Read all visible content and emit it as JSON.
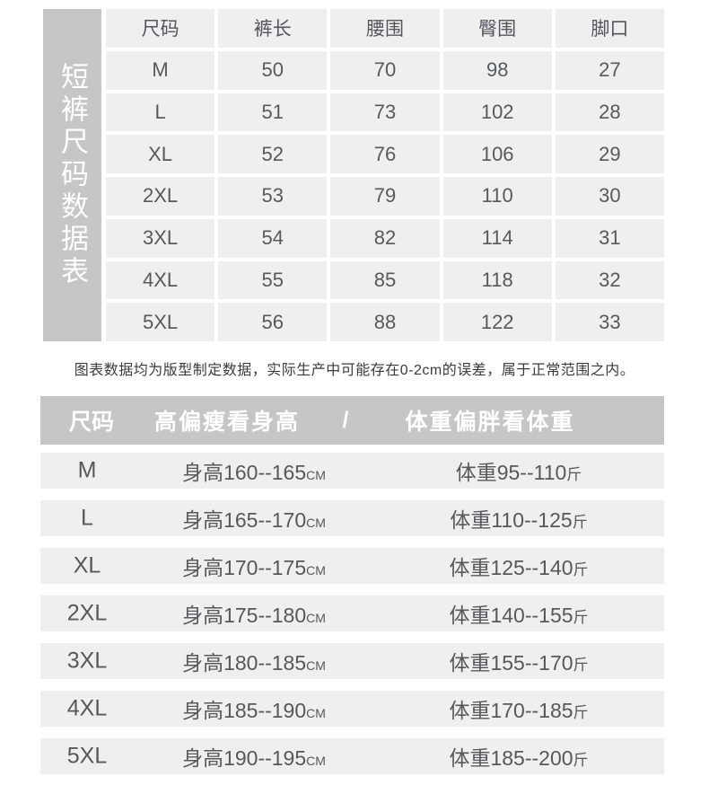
{
  "colors": {
    "bar_gray": "#c6c6c6",
    "cell_gray": "#efeff0",
    "row_gray": "#efefef",
    "table_text": "#58595b",
    "note_text": "#3b3b3b",
    "header_text": "#ffffff"
  },
  "size_table": {
    "side_label": "短裤尺码数据表",
    "columns": [
      "尺码",
      "裤长",
      "腰围",
      "臀围",
      "脚口"
    ],
    "rows": [
      [
        "M",
        "50",
        "70",
        "98",
        "27"
      ],
      [
        "L",
        "51",
        "73",
        "102",
        "28"
      ],
      [
        "XL",
        "52",
        "76",
        "106",
        "29"
      ],
      [
        "2XL",
        "53",
        "79",
        "110",
        "30"
      ],
      [
        "3XL",
        "54",
        "82",
        "114",
        "31"
      ],
      [
        "4XL",
        "55",
        "85",
        "118",
        "32"
      ],
      [
        "5XL",
        "56",
        "88",
        "122",
        "33"
      ]
    ]
  },
  "note": "图表数据均为版型制定数据，实际生产中可能存在0-2cm的误差，属于正常范围之内。",
  "fit_table": {
    "header": {
      "size": "尺码",
      "height": "高偏瘦看身高",
      "separator": "/",
      "weight": "体重偏胖看体重"
    },
    "rows": [
      {
        "size": "M",
        "height": "身高160--165",
        "height_unit": "CM",
        "weight": "体重95--110",
        "weight_unit": "斤"
      },
      {
        "size": "L",
        "height": "身高165--170",
        "height_unit": "CM",
        "weight": "体重110--125",
        "weight_unit": "斤"
      },
      {
        "size": "XL",
        "height": "身高170--175",
        "height_unit": "CM",
        "weight": "体重125--140",
        "weight_unit": "斤"
      },
      {
        "size": "2XL",
        "height": "身高175--180",
        "height_unit": "CM",
        "weight": "体重140--155",
        "weight_unit": "斤"
      },
      {
        "size": "3XL",
        "height": "身高180--185",
        "height_unit": "CM",
        "weight": "体重155--170",
        "weight_unit": "斤"
      },
      {
        "size": "4XL",
        "height": "身高185--190",
        "height_unit": "CM",
        "weight": "体重170--185",
        "weight_unit": "斤"
      },
      {
        "size": "5XL",
        "height": "身高190--195",
        "height_unit": "CM",
        "weight": "体重185--200",
        "weight_unit": "斤"
      }
    ]
  },
  "chart_data": [
    {
      "type": "table",
      "title": "短裤尺码数据表",
      "columns": [
        "尺码",
        "裤长",
        "腰围",
        "臀围",
        "脚口"
      ],
      "rows": [
        [
          "M",
          50,
          70,
          98,
          27
        ],
        [
          "L",
          51,
          73,
          102,
          28
        ],
        [
          "XL",
          52,
          76,
          106,
          29
        ],
        [
          "2XL",
          53,
          79,
          110,
          30
        ],
        [
          "3XL",
          54,
          82,
          114,
          31
        ],
        [
          "4XL",
          55,
          85,
          118,
          32
        ],
        [
          "5XL",
          56,
          88,
          122,
          33
        ]
      ],
      "note": "图表数据均为版型制定数据，实际生产中可能存在0-2cm的误差，属于正常范围之内。"
    },
    {
      "type": "table",
      "title": "尺码 高偏瘦看身高 / 体重偏胖看体重",
      "columns": [
        "尺码",
        "高偏瘦看身高",
        "体重偏胖看体重"
      ],
      "rows": [
        [
          "M",
          "身高160--165CM",
          "体重95--110斤"
        ],
        [
          "L",
          "身高165--170CM",
          "体重110--125斤"
        ],
        [
          "XL",
          "身高170--175CM",
          "体重125--140斤"
        ],
        [
          "2XL",
          "身高175--180CM",
          "体重140--155斤"
        ],
        [
          "3XL",
          "身高180--185CM",
          "体重155--170斤"
        ],
        [
          "4XL",
          "身高185--190CM",
          "体重170--185斤"
        ],
        [
          "5XL",
          "身高190--195CM",
          "体重185--200斤"
        ]
      ]
    }
  ]
}
